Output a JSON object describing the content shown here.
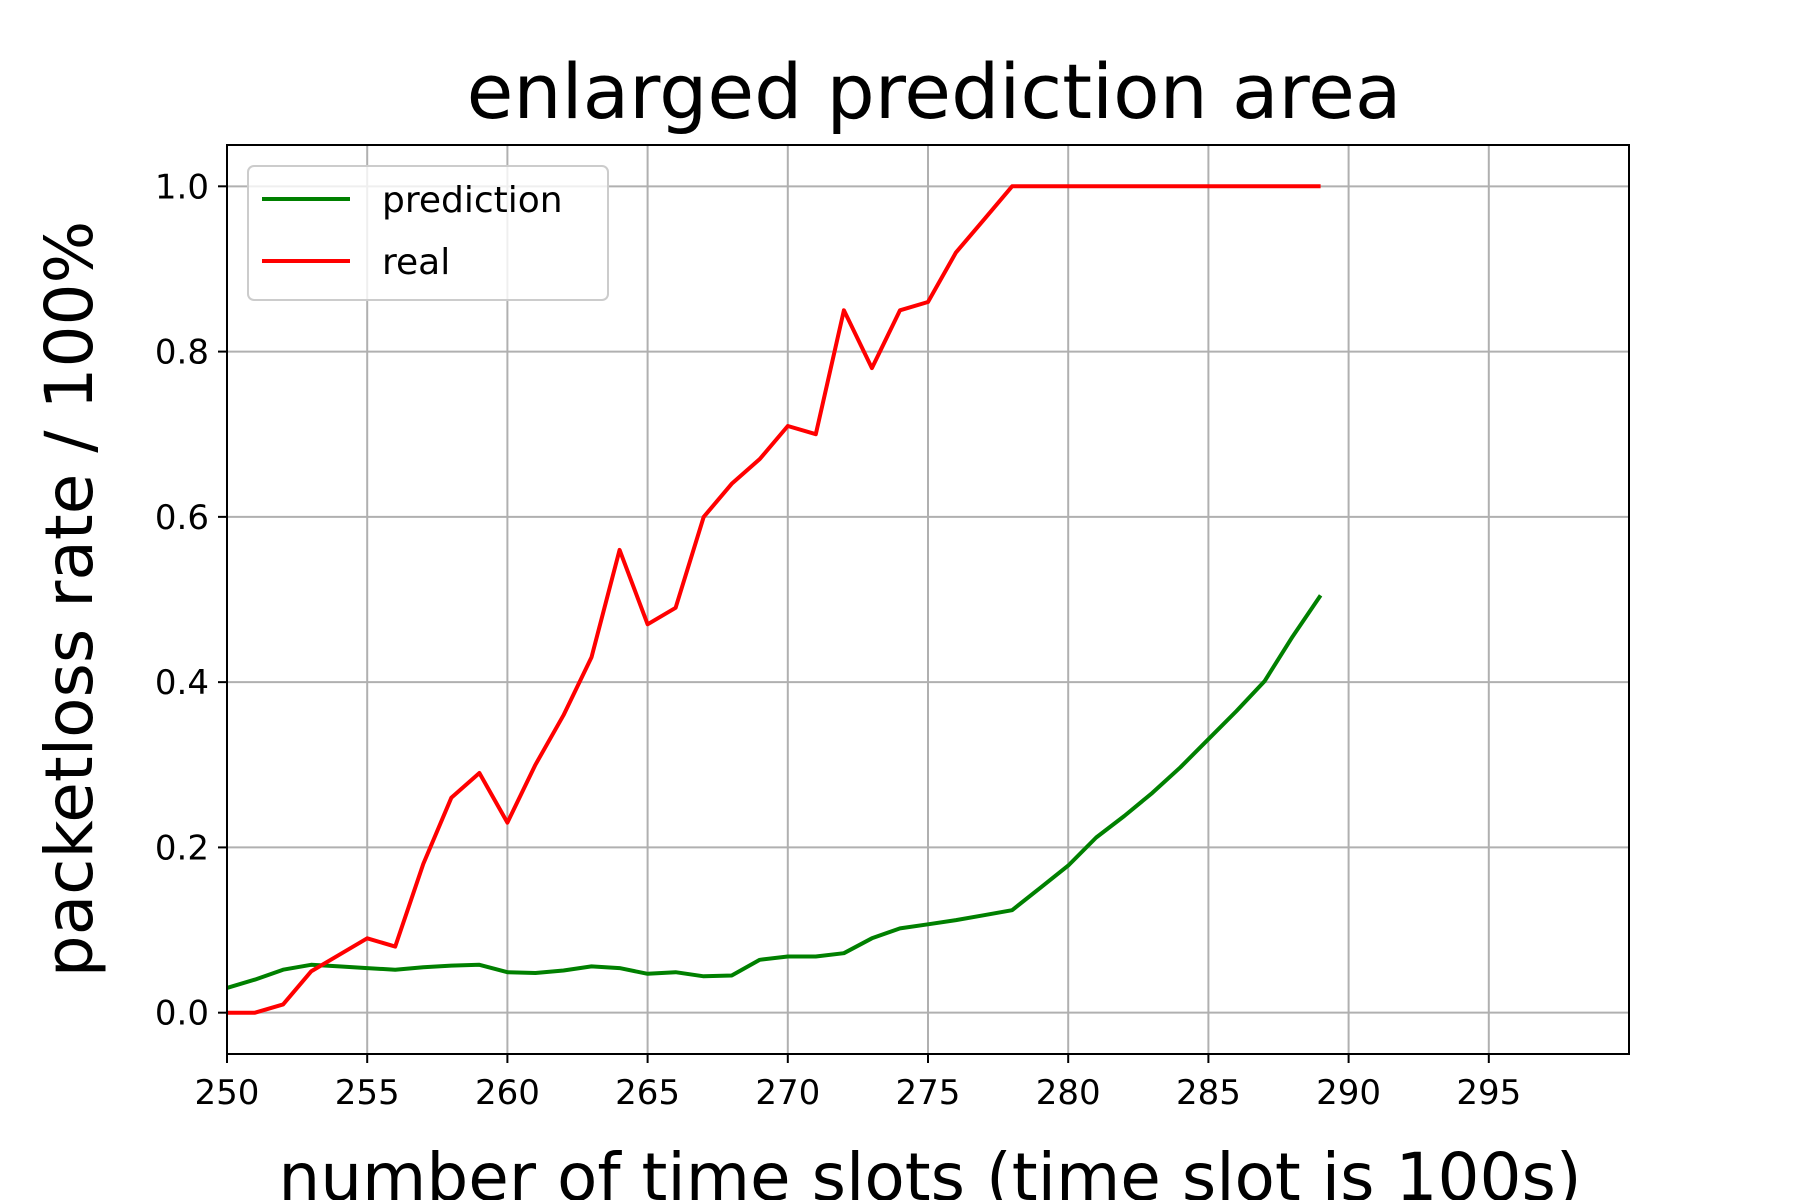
{
  "chart_data": {
    "type": "line",
    "title": "enlarged prediction area",
    "xlabel": "number of time slots (time slot is 100s)",
    "ylabel": "packetloss rate / 100%",
    "xlim": [
      250,
      300
    ],
    "ylim": [
      -0.05,
      1.05
    ],
    "xticks": [
      250,
      255,
      260,
      265,
      270,
      275,
      280,
      285,
      290,
      295
    ],
    "xtick_labels": [
      "250",
      "255",
      "260",
      "265",
      "270",
      "275",
      "280",
      "285",
      "290",
      "295"
    ],
    "yticks": [
      0.0,
      0.2,
      0.4,
      0.6,
      0.8,
      1.0
    ],
    "ytick_labels": [
      "0.0",
      "0.2",
      "0.4",
      "0.6",
      "0.8",
      "1.0"
    ],
    "grid": true,
    "legend_position": "top-left",
    "x": [
      250,
      251,
      252,
      253,
      254,
      255,
      256,
      257,
      258,
      259,
      260,
      261,
      262,
      263,
      264,
      265,
      266,
      267,
      268,
      269,
      270,
      271,
      272,
      273,
      274,
      275,
      276,
      277,
      278,
      279,
      280,
      281,
      282,
      283,
      284,
      285,
      286,
      287,
      288,
      289
    ],
    "series": [
      {
        "name": "prediction",
        "color": "#008000",
        "values": [
          0.03,
          0.04,
          0.052,
          0.058,
          0.056,
          0.054,
          0.052,
          0.055,
          0.057,
          0.058,
          0.049,
          0.048,
          0.051,
          0.056,
          0.054,
          0.047,
          0.049,
          0.044,
          0.045,
          0.064,
          0.068,
          0.068,
          0.072,
          0.09,
          0.102,
          0.107,
          0.112,
          0.118,
          0.124,
          0.151,
          0.178,
          0.212,
          0.238,
          0.266,
          0.297,
          0.331,
          0.365,
          0.401,
          0.455,
          0.505
        ]
      },
      {
        "name": "real",
        "color": "#ff0000",
        "values": [
          0.0,
          0.0,
          0.01,
          0.05,
          0.07,
          0.09,
          0.08,
          0.18,
          0.26,
          0.29,
          0.23,
          0.3,
          0.36,
          0.43,
          0.56,
          0.47,
          0.49,
          0.6,
          0.64,
          0.67,
          0.71,
          0.7,
          0.85,
          0.78,
          0.85,
          0.86,
          0.92,
          0.96,
          1.0,
          1.0,
          1.0,
          1.0,
          1.0,
          1.0,
          1.0,
          1.0,
          1.0,
          1.0,
          1.0,
          1.0
        ]
      }
    ]
  }
}
